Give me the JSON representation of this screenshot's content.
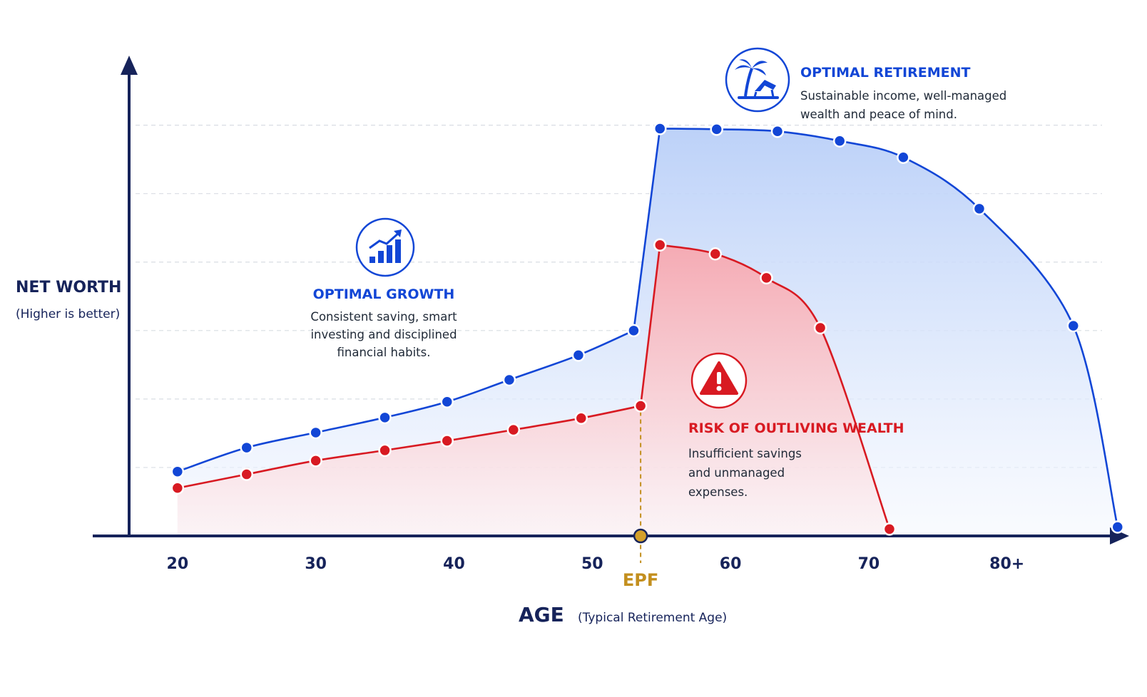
{
  "colors": {
    "axis": "#16235a",
    "optimal": "#1246d6",
    "risk": "#d81a22",
    "epf": "#c38f1e",
    "grid": "#d9dde4",
    "text": "#1f2937"
  },
  "icons": {
    "optimal_retirement": "palm-tree-lounger-icon",
    "optimal_growth": "growth-bar-chart-icon",
    "risk": "warning-triangle-icon"
  },
  "chart_data": {
    "type": "area",
    "xlabel": "AGE",
    "xlabel_note": "(Typical Retirement Age)",
    "ylabel": "NET WORTH",
    "ylabel_note": "(Higher is better)",
    "x_ticks": [
      {
        "value": 20,
        "label": "20"
      },
      {
        "value": 30,
        "label": "30"
      },
      {
        "value": 40,
        "label": "40"
      },
      {
        "value": 50,
        "label": "50"
      },
      {
        "value": 60,
        "label": "60"
      },
      {
        "value": 70,
        "label": "70"
      },
      {
        "value": 80,
        "label": "80+"
      }
    ],
    "xlim": [
      16.5,
      86
    ],
    "ylim": [
      0,
      6.6
    ],
    "grid": true,
    "grid_levels": [
      1,
      2,
      3,
      4,
      5,
      6
    ],
    "epf_marker": {
      "x": 53.5,
      "label": "EPF"
    },
    "series": [
      {
        "key": "optimal",
        "points": [
          [
            20,
            0.94
          ],
          [
            25,
            1.29
          ],
          [
            30,
            1.51
          ],
          [
            35,
            1.73
          ],
          [
            39.5,
            1.96
          ],
          [
            44,
            2.28
          ],
          [
            49,
            2.64
          ],
          [
            53,
            3.0
          ],
          [
            54.9,
            5.95
          ],
          [
            59,
            5.94
          ],
          [
            63.4,
            5.91
          ],
          [
            67.9,
            5.77
          ],
          [
            72.5,
            5.53
          ],
          [
            78,
            4.78
          ],
          [
            84.8,
            3.07
          ],
          [
            88,
            0.13
          ]
        ]
      },
      {
        "key": "risk",
        "points": [
          [
            20,
            0.7
          ],
          [
            25,
            0.9
          ],
          [
            30,
            1.1
          ],
          [
            35,
            1.25
          ],
          [
            39.5,
            1.39
          ],
          [
            44.3,
            1.55
          ],
          [
            49.2,
            1.72
          ],
          [
            53.5,
            1.9
          ],
          [
            54.9,
            4.25
          ],
          [
            58.9,
            4.12
          ],
          [
            62.6,
            3.77
          ],
          [
            66.5,
            3.04
          ],
          [
            71.5,
            0.1
          ]
        ]
      }
    ],
    "annotations": [
      {
        "key": "optimal_retirement",
        "title": "OPTIMAL RETIREMENT",
        "lines": [
          "Sustainable income, well-managed",
          "wealth and peace of mind."
        ]
      },
      {
        "key": "optimal_growth",
        "title": "OPTIMAL GROWTH",
        "lines": [
          "Consistent saving, smart",
          "investing and disciplined",
          "financial habits."
        ]
      },
      {
        "key": "risk",
        "title": "RISK OF OUTLIVING WEALTH",
        "lines": [
          "Insufficient savings",
          "and unmanaged",
          "expenses."
        ]
      }
    ]
  }
}
